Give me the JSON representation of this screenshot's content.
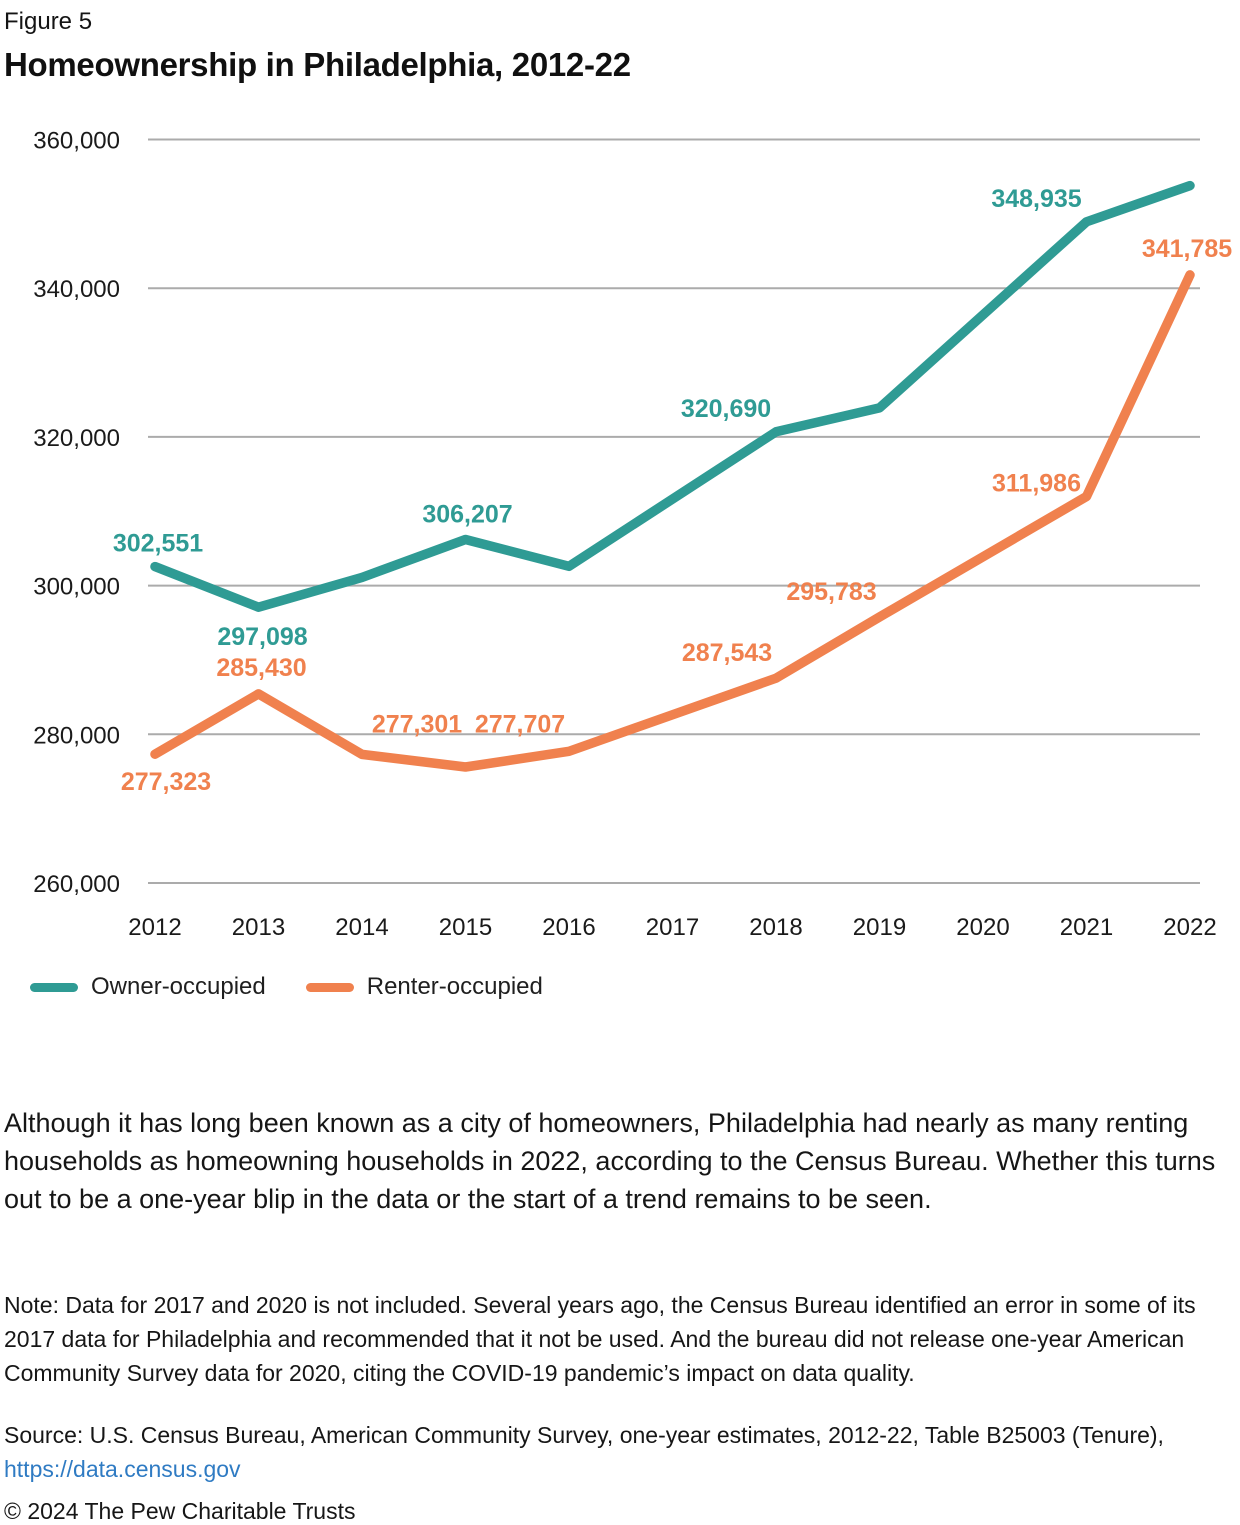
{
  "header": {
    "figure_label": "Figure 5",
    "title": "Homeownership in Philadelphia, 2012-22"
  },
  "chart_data": {
    "type": "line",
    "title": "Homeownership in Philadelphia, 2012-22",
    "x": [
      2012,
      2013,
      2014,
      2015,
      2016,
      2017,
      2018,
      2019,
      2020,
      2021,
      2022
    ],
    "ylim": [
      260000,
      360000
    ],
    "ytick_step": 20000,
    "yticks": [
      "360,000",
      "340,000",
      "320,000",
      "300,000",
      "280,000",
      "260,000"
    ],
    "grid": true,
    "gridline_color": "#ababab",
    "axis_text_color": "#1a1a1a",
    "legend_position": "below-left",
    "gap_years_no_data": [
      2017,
      2020
    ],
    "series": [
      {
        "name": "Owner-occupied",
        "color": "#2f9b94",
        "values": [
          302551,
          297098,
          301100,
          306207,
          302600,
          null,
          320690,
          323900,
          null,
          348935,
          353800
        ],
        "estimated_years": [
          2014,
          2016,
          2019,
          2022
        ],
        "point_labels": [
          {
            "year": 2012,
            "text": "302,551",
            "dx": 3,
            "dy": -15
          },
          {
            "year": 2013,
            "text": "297,098",
            "dx": 4,
            "dy": 38
          },
          {
            "year": 2015,
            "text": "306,207",
            "dx": 2,
            "dy": -17
          },
          {
            "year": 2018,
            "text": "320,690",
            "dx": -50,
            "dy": -15
          },
          {
            "year": 2021,
            "text": "348,935",
            "dx": -50,
            "dy": -15
          }
        ]
      },
      {
        "name": "Renter-occupied",
        "color": "#f0814e",
        "values": [
          277323,
          285430,
          277301,
          275600,
          277707,
          null,
          287543,
          295783,
          null,
          311986,
          341785
        ],
        "estimated_years": [
          2015
        ],
        "point_labels": [
          {
            "year": 2012,
            "text": "277,323",
            "dx": 11,
            "dy": 36
          },
          {
            "year": 2013,
            "text": "285,430",
            "dx": 3,
            "dy": -18
          },
          {
            "year": 2014,
            "text": "277,301",
            "dx": 55,
            "dy": -22
          },
          {
            "year": 2016,
            "text": "277,707",
            "dx": -49,
            "dy": -19
          },
          {
            "year": 2018,
            "text": "287,543",
            "dx": -49,
            "dy": -17
          },
          {
            "year": 2019,
            "text": "295,783",
            "dx": -48,
            "dy": -17
          },
          {
            "year": 2021,
            "text": "311,986",
            "dx": -50,
            "dy": -5
          },
          {
            "year": 2022,
            "text": "341,785",
            "dx": -3,
            "dy": -18
          }
        ]
      }
    ]
  },
  "legend": [
    {
      "label": "Owner-occupied",
      "color": "#2f9b94"
    },
    {
      "label": "Renter-occupied",
      "color": "#f0814e"
    }
  ],
  "body_paragraph": "Although it has long been known as a city of homeowners, Philadelphia had nearly as many renting households as homeowning households in 2022, according to the Census Bureau. Whether this turns out to be a one-year blip in the data or the start of a trend remains to be seen.",
  "note": "Note: Data for 2017 and 2020 is not included. Several years ago, the Census Bureau identified an error in some of its 2017 data for Philadelphia and recommended that it not be used. And the bureau did not release one-year American Community Survey data for 2020, citing the COVID-19 pandemic’s impact on data quality.",
  "source": {
    "prefix": "Source: U.S. Census Bureau, American Community Survey, one-year estimates, 2012-22, Table B25003 (Tenure), ",
    "link": "https://data.census.gov"
  },
  "copyright": "© 2024 The Pew Charitable Trusts"
}
